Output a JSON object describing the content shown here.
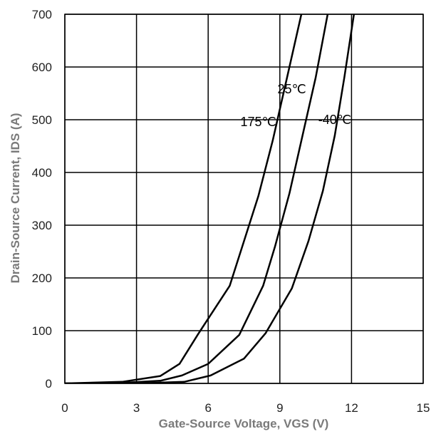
{
  "chart_data": {
    "type": "line",
    "title": "",
    "xlabel": "Gate-Source Voltage, VGS (V)",
    "ylabel": "Drain-Source Current, IDS (A)",
    "xlim": [
      0,
      15
    ],
    "ylim": [
      0,
      700
    ],
    "xticks": [
      0,
      3,
      6,
      9,
      12,
      15
    ],
    "yticks": [
      0,
      100,
      200,
      300,
      400,
      500,
      600,
      700
    ],
    "grid": true,
    "legend": "inline labels",
    "line_color": "#000000",
    "series": [
      {
        "name": "175℃",
        "points": [
          [
            0,
            0
          ],
          [
            2.4,
            3
          ],
          [
            4.0,
            14
          ],
          [
            4.8,
            37
          ],
          [
            5.6,
            95
          ],
          [
            6.9,
            185
          ],
          [
            7.5,
            270
          ],
          [
            8.1,
            355
          ],
          [
            8.7,
            460
          ],
          [
            9.3,
            580
          ],
          [
            9.9,
            700
          ]
        ]
      },
      {
        "name": "25℃",
        "points": [
          [
            0,
            0
          ],
          [
            2.4,
            1
          ],
          [
            4.0,
            5
          ],
          [
            4.9,
            15
          ],
          [
            6.0,
            37
          ],
          [
            7.3,
            92
          ],
          [
            8.3,
            185
          ],
          [
            8.8,
            260
          ],
          [
            9.4,
            360
          ],
          [
            10.0,
            480
          ],
          [
            10.5,
            580
          ],
          [
            11.0,
            700
          ]
        ]
      },
      {
        "name": "-40℃",
        "points": [
          [
            0,
            0
          ],
          [
            3.0,
            0
          ],
          [
            5.0,
            3
          ],
          [
            6.1,
            15
          ],
          [
            7.5,
            47
          ],
          [
            8.4,
            95
          ],
          [
            9.5,
            180
          ],
          [
            10.2,
            270
          ],
          [
            10.8,
            365
          ],
          [
            11.3,
            470
          ],
          [
            11.7,
            580
          ],
          [
            12.1,
            700
          ]
        ]
      }
    ],
    "annotations": [
      {
        "text": "175℃",
        "series": 0,
        "x": 8.1,
        "y": 488
      },
      {
        "text": "25℃",
        "series": 1,
        "x": 9.5,
        "y": 550
      },
      {
        "text": "-40℃",
        "series": 2,
        "x": 11.3,
        "y": 492
      }
    ]
  }
}
